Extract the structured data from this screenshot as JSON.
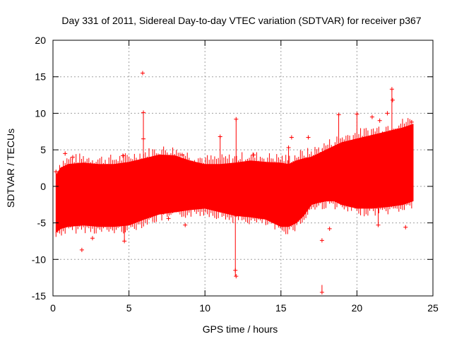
{
  "chart_data": {
    "type": "scatter",
    "title": "Day 331 of 2011, Sidereal Day-to-day VTEC variation (SDTVAR) for receiver p367",
    "xlabel": "GPS time / hours",
    "ylabel": "SDTVAR / TECUs",
    "xlim": [
      0,
      25
    ],
    "ylim": [
      -15,
      20
    ],
    "xticks": [
      0,
      5,
      10,
      15,
      20,
      25
    ],
    "yticks": [
      -15,
      -10,
      -5,
      0,
      5,
      10,
      15,
      20
    ],
    "grid": true,
    "series_color": "#ff0000",
    "envelope": {
      "x": [
        0.2,
        0.5,
        1.0,
        2.0,
        3.0,
        4.0,
        5.0,
        6.0,
        7.0,
        8.0,
        9.0,
        10.0,
        11.0,
        12.0,
        13.0,
        14.0,
        15.0,
        15.5,
        16.0,
        16.5,
        17.0,
        17.5,
        18.0,
        18.5,
        19.0,
        20.0,
        21.0,
        22.0,
        23.0,
        23.7
      ],
      "upper": [
        1.5,
        2.5,
        3.0,
        3.2,
        3.0,
        3.0,
        3.3,
        3.8,
        4.3,
        4.2,
        3.5,
        3.0,
        3.0,
        3.2,
        3.5,
        3.3,
        3.2,
        3.0,
        3.5,
        3.8,
        4.0,
        4.5,
        5.0,
        5.5,
        6.0,
        6.5,
        7.0,
        7.5,
        8.0,
        8.5
      ],
      "lower": [
        -6.3,
        -5.8,
        -5.5,
        -5.3,
        -5.5,
        -5.5,
        -5.3,
        -4.5,
        -3.8,
        -3.5,
        -3.2,
        -3.0,
        -3.5,
        -4.0,
        -4.2,
        -4.5,
        -5.5,
        -5.5,
        -5.0,
        -4.0,
        -2.5,
        -2.2,
        -2.0,
        -2.0,
        -2.5,
        -3.0,
        -3.0,
        -2.8,
        -2.5,
        -2.0
      ]
    },
    "outliers": [
      {
        "x": 0.2,
        "y": 2.0
      },
      {
        "x": 0.8,
        "y": 4.5
      },
      {
        "x": 1.3,
        "y": 4.0
      },
      {
        "x": 1.9,
        "y": -8.7
      },
      {
        "x": 2.6,
        "y": -7.1
      },
      {
        "x": 4.6,
        "y": 4.2
      },
      {
        "x": 4.7,
        "y": -7.5
      },
      {
        "x": 5.9,
        "y": 15.5
      },
      {
        "x": 5.95,
        "y": 10.1
      },
      {
        "x": 5.95,
        "y": 6.5
      },
      {
        "x": 7.6,
        "y": -4.4
      },
      {
        "x": 8.5,
        "y": 4.3
      },
      {
        "x": 8.7,
        "y": -5.3
      },
      {
        "x": 11.0,
        "y": 6.8
      },
      {
        "x": 12.05,
        "y": 9.2
      },
      {
        "x": 12.0,
        "y": -11.5
      },
      {
        "x": 12.05,
        "y": -12.3
      },
      {
        "x": 13.2,
        "y": 4.3
      },
      {
        "x": 14.7,
        "y": -4.5
      },
      {
        "x": 15.5,
        "y": 5.3
      },
      {
        "x": 15.7,
        "y": 6.7
      },
      {
        "x": 16.8,
        "y": 6.7
      },
      {
        "x": 17.7,
        "y": -14.5
      },
      {
        "x": 17.7,
        "y": -7.4
      },
      {
        "x": 18.2,
        "y": -5.8
      },
      {
        "x": 18.8,
        "y": 9.8
      },
      {
        "x": 20.0,
        "y": 9.9
      },
      {
        "x": 21.0,
        "y": 9.5
      },
      {
        "x": 21.4,
        "y": -5.3
      },
      {
        "x": 21.5,
        "y": 9.0
      },
      {
        "x": 22.0,
        "y": 10.0
      },
      {
        "x": 22.3,
        "y": 13.3
      },
      {
        "x": 22.35,
        "y": 11.8
      },
      {
        "x": 23.2,
        "y": -5.6
      },
      {
        "x": 23.6,
        "y": 8.8
      }
    ],
    "spikes": [
      {
        "x": 5.95,
        "y1": 3.5,
        "y2": 10.1
      },
      {
        "x": 12.0,
        "y1": -12.3,
        "y2": -3.5
      },
      {
        "x": 12.05,
        "y1": 3.0,
        "y2": 9.2
      },
      {
        "x": 11.0,
        "y1": 3.0,
        "y2": 6.8
      },
      {
        "x": 15.5,
        "y1": 3.0,
        "y2": 5.3
      },
      {
        "x": 17.7,
        "y1": -14.5,
        "y2": -13.5
      },
      {
        "x": 18.8,
        "y1": 5.5,
        "y2": 9.8
      },
      {
        "x": 20.0,
        "y1": 6.5,
        "y2": 9.9
      },
      {
        "x": 21.4,
        "y1": -5.3,
        "y2": -3.0
      },
      {
        "x": 22.3,
        "y1": 7.5,
        "y2": 13.3
      },
      {
        "x": 4.7,
        "y1": -7.5,
        "y2": -5.3
      }
    ]
  }
}
